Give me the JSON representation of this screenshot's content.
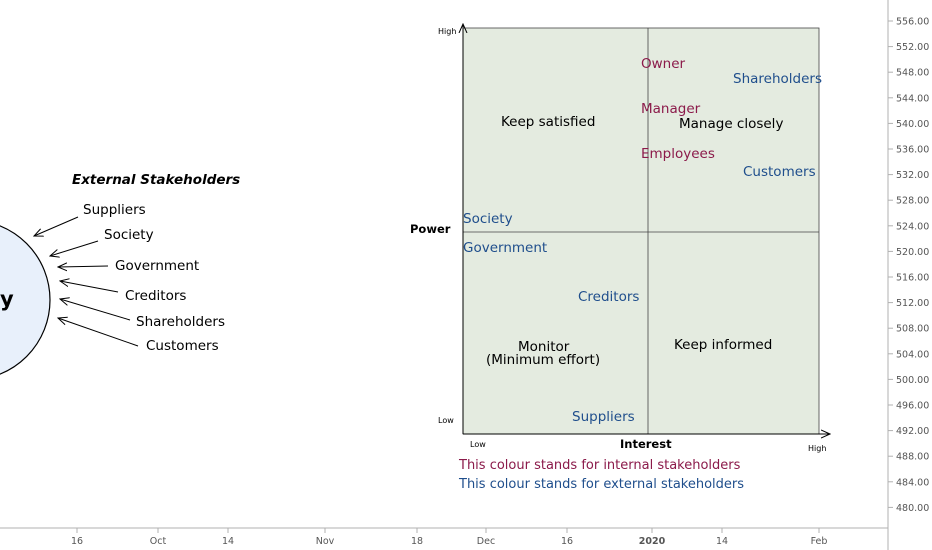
{
  "colors": {
    "internal": "#8b1a4a",
    "external": "#1f4e8c",
    "matrix_fill": "#e4ebe0",
    "circle_fill": "#e8f0fb",
    "axis_text": "#555555"
  },
  "external_diagram": {
    "title": "External Stakeholders",
    "circle_label": "y",
    "items": [
      "Suppliers",
      "Society",
      "Government",
      "Creditors",
      "Shareholders",
      "Customers"
    ]
  },
  "matrix": {
    "y_axis": {
      "label": "Power",
      "high": "High",
      "low": "Low"
    },
    "x_axis": {
      "label": "Interest",
      "high": "High",
      "low": "Low"
    },
    "quadrants": {
      "top_left": "Keep satisfied",
      "top_right": "Manage closely",
      "bottom_left_line1": "Monitor",
      "bottom_left_line2": "(Minimum effort)",
      "bottom_right": "Keep informed"
    },
    "stakeholders": [
      {
        "name": "Owner",
        "group": "internal"
      },
      {
        "name": "Shareholders",
        "group": "external"
      },
      {
        "name": "Manager",
        "group": "internal"
      },
      {
        "name": "Employees",
        "group": "internal"
      },
      {
        "name": "Customers",
        "group": "external"
      },
      {
        "name": "Society",
        "group": "external"
      },
      {
        "name": "Government",
        "group": "external"
      },
      {
        "name": "Creditors",
        "group": "external"
      },
      {
        "name": "Suppliers",
        "group": "external"
      }
    ],
    "legend": {
      "internal": "This colour stands for internal stakeholders",
      "external": "This colour stands for external stakeholders"
    }
  },
  "price_axis": {
    "ticks": [
      "556.00",
      "552.00",
      "548.00",
      "544.00",
      "540.00",
      "536.00",
      "532.00",
      "528.00",
      "524.00",
      "520.00",
      "516.00",
      "512.00",
      "508.00",
      "504.00",
      "500.00",
      "496.00",
      "492.00",
      "488.00",
      "484.00",
      "480.00"
    ]
  },
  "time_axis": {
    "ticks": [
      "16",
      "Oct",
      "14",
      "Nov",
      "18",
      "Dec",
      "16",
      "2020",
      "14",
      "Feb"
    ]
  }
}
